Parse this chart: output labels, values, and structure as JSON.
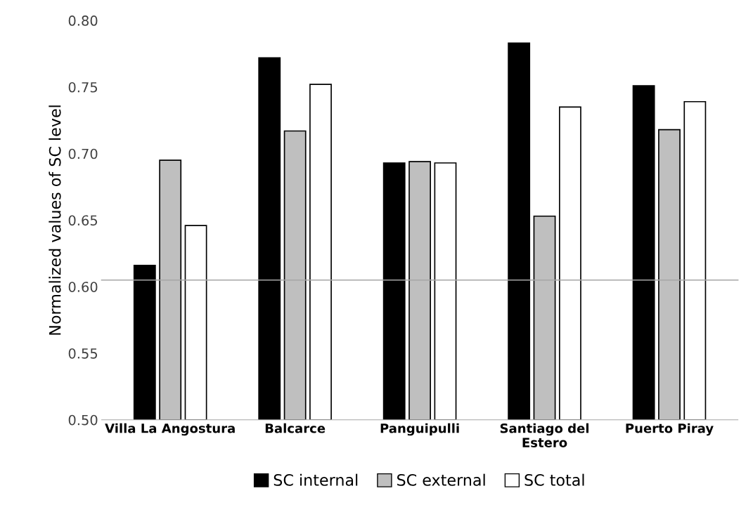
{
  "chart_data": {
    "type": "bar",
    "ylabel": "Normalized values of SC level",
    "categories": [
      "Villa La Angostura",
      "Balcarce",
      "Panguipulli",
      "Santiago del\nEstero",
      "Puerto Piray"
    ],
    "series": [
      {
        "name": "SC internal",
        "color": "#000000",
        "values": [
          0.616,
          0.772,
          0.693,
          0.783,
          0.751
        ]
      },
      {
        "name": "SC external",
        "color": "#bfbfbf",
        "values": [
          0.695,
          0.717,
          0.694,
          0.653,
          0.718
        ]
      },
      {
        "name": "SC total",
        "color": "#ffffff",
        "values": [
          0.646,
          0.752,
          0.693,
          0.735,
          0.739
        ]
      }
    ],
    "ylim": [
      0.5,
      0.8
    ],
    "yticks": [
      {
        "value": 0.5,
        "label": "0.50"
      },
      {
        "value": 0.55,
        "label": "0.55"
      },
      {
        "value": 0.6,
        "label": "0.60"
      },
      {
        "value": 0.65,
        "label": "0.65"
      },
      {
        "value": 0.7,
        "label": "0.70"
      },
      {
        "value": 0.75,
        "label": "0.75"
      },
      {
        "value": 0.8,
        "label": "0.80"
      }
    ],
    "ref_lines": [
      {
        "axis": "y",
        "value": 0.605,
        "color": "#a6a6a6"
      }
    ],
    "grid": false,
    "legend": "bottom"
  }
}
